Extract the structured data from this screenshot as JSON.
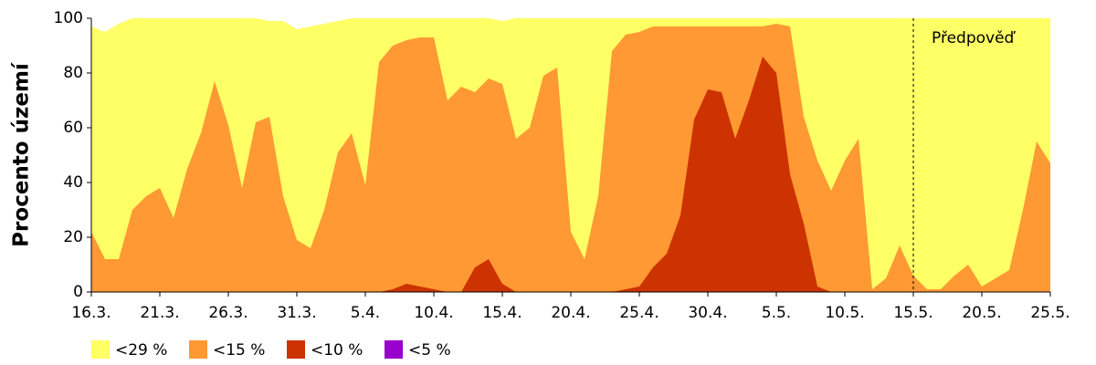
{
  "chart_data": {
    "type": "area",
    "ylabel": "Procento území",
    "categories": [
      "16.3.",
      null,
      null,
      null,
      null,
      "21.3.",
      null,
      null,
      null,
      null,
      "26.3.",
      null,
      null,
      null,
      null,
      "31.3.",
      null,
      null,
      null,
      null,
      "5.4.",
      null,
      null,
      null,
      null,
      "10.4.",
      null,
      null,
      null,
      null,
      "15.4.",
      null,
      null,
      null,
      null,
      "20.4.",
      null,
      null,
      null,
      null,
      "25.4.",
      null,
      null,
      null,
      null,
      "30.4.",
      null,
      null,
      null,
      null,
      "5.5.",
      null,
      null,
      null,
      null,
      "10.5.",
      null,
      null,
      null,
      null,
      "15.5.",
      null,
      null,
      null,
      null,
      "20.5.",
      null,
      null,
      null,
      null,
      "25.5."
    ],
    "series": [
      {
        "name": "<29 %",
        "color": "#ffff66",
        "values": [
          97,
          95,
          98,
          100,
          100,
          100,
          100,
          100,
          100,
          100,
          100,
          100,
          100,
          99,
          99,
          96,
          97,
          98,
          99,
          100,
          100,
          100,
          100,
          100,
          100,
          100,
          100,
          100,
          100,
          100,
          99,
          100,
          100,
          100,
          100,
          100,
          100,
          100,
          100,
          100,
          100,
          100,
          100,
          100,
          100,
          100,
          100,
          100,
          100,
          100,
          100,
          100,
          100,
          100,
          100,
          100,
          100,
          100,
          100,
          100,
          100,
          100,
          100,
          100,
          100,
          100,
          100,
          100,
          100,
          100,
          100
        ]
      },
      {
        "name": "<15 %",
        "color": "#ff9933",
        "values": [
          22,
          12,
          12,
          30,
          35,
          38,
          27,
          45,
          58,
          77,
          61,
          38,
          62,
          64,
          35,
          19,
          16,
          30,
          51,
          58,
          39,
          84,
          90,
          92,
          93,
          93,
          70,
          75,
          73,
          78,
          76,
          56,
          60,
          79,
          82,
          22,
          12,
          35,
          88,
          94,
          95,
          97,
          97,
          97,
          97,
          97,
          97,
          97,
          97,
          97,
          98,
          97,
          64,
          48,
          37,
          48,
          56,
          1,
          5,
          17,
          6,
          1,
          1,
          6,
          10,
          2,
          5,
          8,
          30,
          55,
          47
        ]
      },
      {
        "name": "<10 %",
        "color": "#cc3300",
        "values": [
          0,
          0,
          0,
          0,
          0,
          0,
          0,
          0,
          0,
          0,
          0,
          0,
          0,
          0,
          0,
          0,
          0,
          0,
          0,
          0,
          0,
          0,
          1,
          3,
          2,
          1,
          0,
          0,
          9,
          12,
          3,
          0,
          0,
          0,
          0,
          0,
          0,
          0,
          0,
          1,
          2,
          9,
          14,
          28,
          63,
          74,
          73,
          56,
          70,
          86,
          80,
          43,
          25,
          2,
          0,
          0,
          0,
          0,
          0,
          0,
          0,
          0,
          0,
          0,
          0,
          0,
          0,
          0,
          0,
          0,
          0
        ]
      },
      {
        "name": "<5 %",
        "color": "#9900cc",
        "values": [
          0,
          0,
          0,
          0,
          0,
          0,
          0,
          0,
          0,
          0,
          0,
          0,
          0,
          0,
          0,
          0,
          0,
          0,
          0,
          0,
          0,
          0,
          0,
          0,
          0,
          0,
          0,
          0,
          0,
          0,
          0,
          0,
          0,
          0,
          0,
          0,
          0,
          0,
          0,
          0,
          0,
          0,
          0,
          0,
          0,
          0,
          0,
          0,
          0,
          0,
          0,
          0,
          0,
          0,
          0,
          0,
          0,
          0,
          0,
          0,
          0,
          0,
          0,
          0,
          0,
          0,
          0,
          0,
          0,
          0,
          0
        ]
      }
    ],
    "annotation": {
      "text": "Předpověď",
      "x": "15.5."
    },
    "ylim": [
      0,
      100
    ],
    "yticks": [
      0,
      20,
      40,
      60,
      80,
      100
    ]
  }
}
